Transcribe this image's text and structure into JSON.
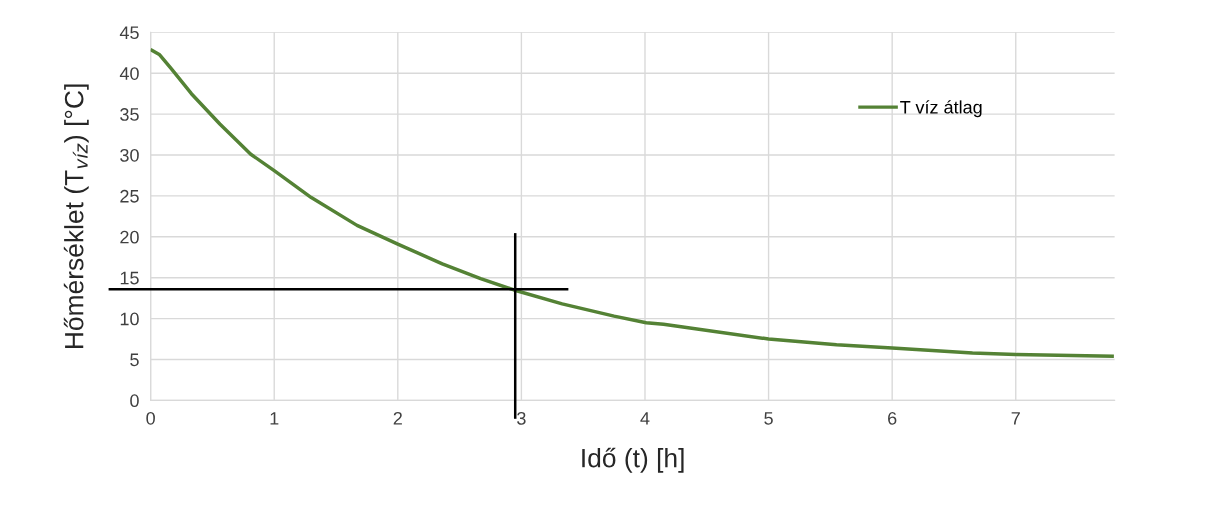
{
  "chart_data": {
    "type": "line",
    "xlabel": "Idő (t) [h]",
    "ylabel": "Hőmérséklet (T$_{víz}$) [°C]",
    "xlim": [
      0,
      7.8
    ],
    "xticks": [
      0,
      1,
      2,
      3,
      4,
      5,
      6,
      7
    ],
    "ylim": [
      0,
      45
    ],
    "yticks": [
      0,
      5,
      10,
      15,
      20,
      25,
      30,
      35,
      40,
      45
    ],
    "grid": true,
    "legend": "top right",
    "line_style": "solid",
    "marker": "none",
    "ref_lines": [
      {
        "axis": "y",
        "value": 13.6,
        "color": "#000000"
      },
      {
        "axis": "x",
        "value": 2.95,
        "color": "#000000"
      }
    ],
    "series": [
      {
        "name": "T víz átlag",
        "color": "#548235",
        "x": [
          0.01,
          0.07,
          0.17,
          0.33,
          0.56,
          0.81,
          1.0,
          1.3,
          1.67,
          2.0,
          2.36,
          2.67,
          2.94,
          3.33,
          3.75,
          4.01,
          4.15,
          5.0,
          5.55,
          6.0,
          6.65,
          7.0,
          7.78
        ],
        "values": [
          42.8,
          42.3,
          40.5,
          37.5,
          33.8,
          30.1,
          28.1,
          24.8,
          21.4,
          19.1,
          16.7,
          14.9,
          13.5,
          11.8,
          10.3,
          9.5,
          9.3,
          7.5,
          6.8,
          6.4,
          5.8,
          5.6,
          5.4
        ]
      }
    ]
  }
}
